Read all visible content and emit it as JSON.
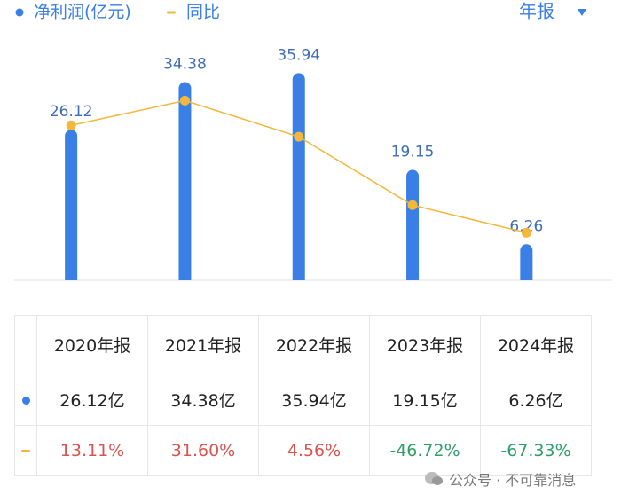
{
  "chart_data": {
    "type": "bar",
    "series": [
      {
        "name": "净利润(亿元)",
        "color": "#3a7fe6",
        "values": [
          26.12,
          34.38,
          35.94,
          19.15,
          6.26
        ]
      },
      {
        "name": "同比",
        "color": "#f2b73b",
        "type": "line",
        "axis": "y2",
        "values": [
          13.11,
          31.6,
          4.56,
          -46.72,
          -67.33
        ]
      }
    ],
    "ylim": [
      0,
      44
    ],
    "y2lim": [
      -103,
      87
    ]
  },
  "selector": "年报",
  "table": {
    "header": [
      "2020年报",
      "2021年报",
      "2022年报",
      "2023年报",
      "2024年报"
    ],
    "rows": [
      [
        "26.12亿",
        "34.38亿",
        "35.94亿",
        "19.15亿",
        "6.26亿"
      ],
      [
        "13.11%",
        "31.60%",
        "4.56%",
        "-46.72%",
        "-67.33%"
      ]
    ]
  },
  "watermark": "公众号 · 不可靠消息"
}
